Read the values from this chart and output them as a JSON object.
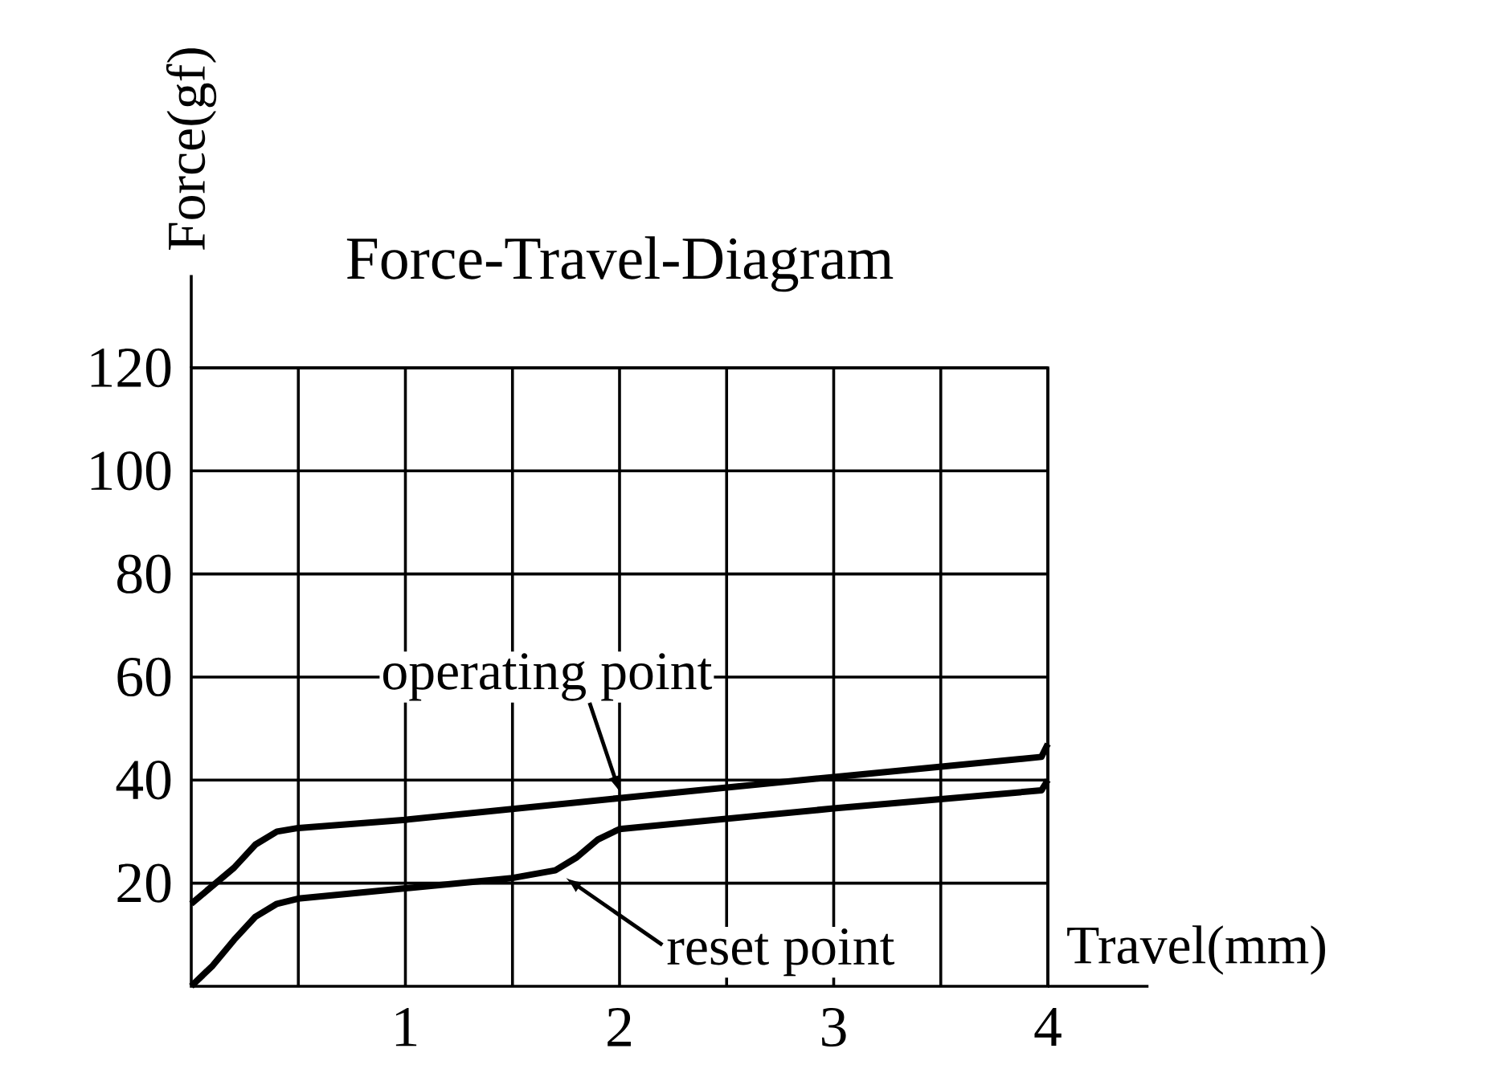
{
  "chart_data": {
    "type": "line",
    "title": "Force-Travel-Diagram",
    "xlabel": "Travel(mm)",
    "ylabel": "Force(gf)",
    "xlim": [
      0,
      4
    ],
    "ylim": [
      0,
      120
    ],
    "xticks": [
      {
        "value": 0.5,
        "label": null
      },
      1,
      {
        "value": 1.5,
        "label": null
      },
      2,
      {
        "value": 2.5,
        "label": null
      },
      3,
      {
        "value": 3.5,
        "label": null
      },
      4
    ],
    "yticks": [
      20,
      40,
      60,
      80,
      100,
      120
    ],
    "grid": true,
    "marker": "none",
    "line_style": "solid",
    "series": [
      {
        "color": "#000000",
        "x": [
          0,
          0.1,
          0.2,
          0.3,
          0.4,
          0.5,
          1,
          2,
          3,
          3.97,
          4
        ],
        "values": [
          16,
          19.5,
          23,
          27.5,
          30,
          30.7,
          32.3,
          36.5,
          40.6,
          44.5,
          47
        ]
      },
      {
        "color": "#000000",
        "x": [
          0,
          0.1,
          0.2,
          0.3,
          0.4,
          0.5,
          1,
          1.5,
          1.7,
          1.8,
          1.9,
          2,
          3,
          3.97,
          4
        ],
        "values": [
          0,
          4,
          9,
          13.5,
          16,
          17,
          19,
          21,
          22.5,
          25,
          28.5,
          30.5,
          34.5,
          38,
          40
        ]
      }
    ],
    "annotations": [
      {
        "text": "operating point",
        "x": 2,
        "y": 36.5
      },
      {
        "text": "reset point",
        "x": 1.75,
        "y": 22
      }
    ]
  }
}
